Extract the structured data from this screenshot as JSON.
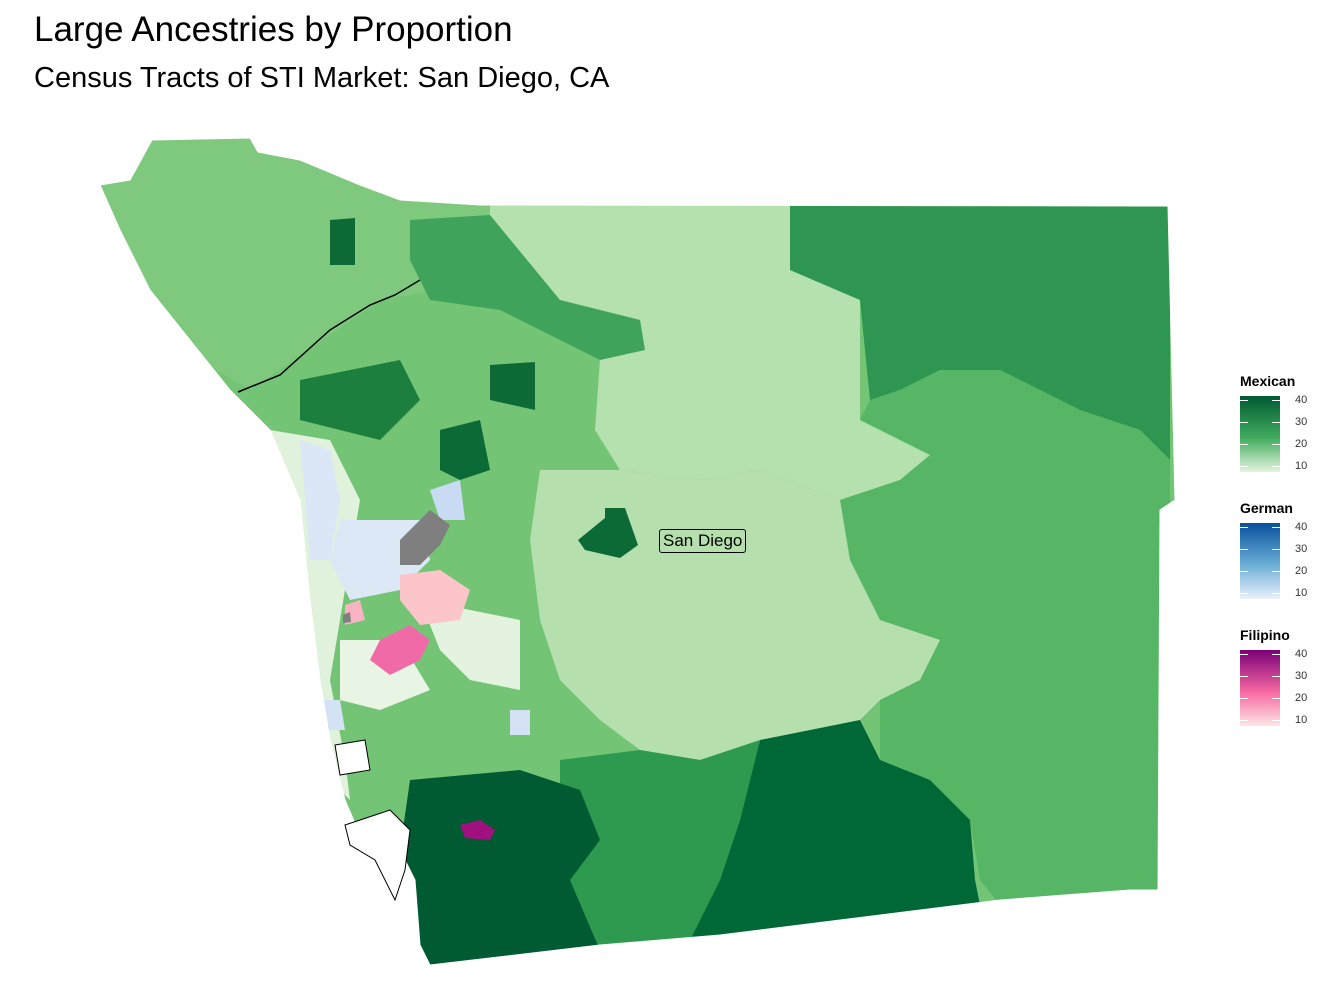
{
  "title": "Large Ancestries by Proportion",
  "subtitle": "Census Tracts of STI Market: San Diego, CA",
  "city_label": "San Diego",
  "legends": [
    {
      "title": "Mexican",
      "labels": [
        "40",
        "30",
        "20",
        "10"
      ],
      "color_low": "#e5f5e0",
      "color_mid": "#41ab5d",
      "color_high": "#005a32"
    },
    {
      "title": "German",
      "labels": [
        "40",
        "30",
        "20",
        "10"
      ],
      "color_low": "#eaf1fb",
      "color_mid": "#6baed6",
      "color_high": "#08519c"
    },
    {
      "title": "Filipino",
      "labels": [
        "40",
        "30",
        "20",
        "10"
      ],
      "color_low": "#fde6e6",
      "color_mid": "#f768a1",
      "color_high": "#7a0177"
    }
  ]
}
